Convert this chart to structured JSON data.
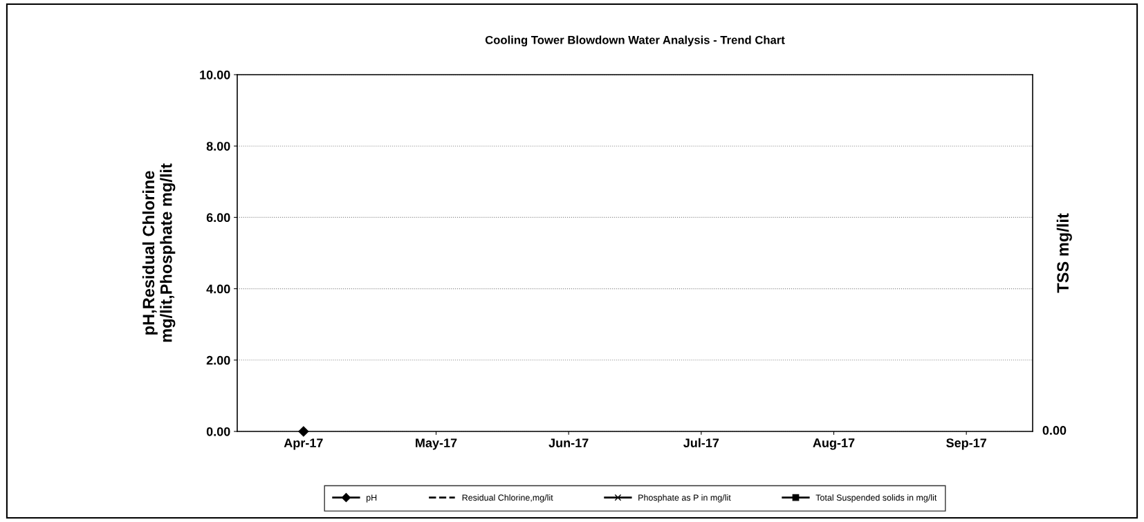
{
  "chart_data": {
    "type": "line",
    "title": "Cooling Tower Blowdown Water Analysis - Trend Chart",
    "ylabel": "pH,Residual Chlorine\nmg/lit,Phosphate mg/lit",
    "y2label": "TSS mg/lit",
    "categories": [
      "Apr-17",
      "May-17",
      "Jun-17",
      "Jul-17",
      "Aug-17",
      "Sep-17"
    ],
    "series": [
      {
        "name": "pH",
        "color": "#000000",
        "values": [
          0,
          null,
          null,
          null,
          null,
          null
        ],
        "marker": "diamond",
        "line_style": "solid"
      },
      {
        "name": "Residual Chlorine,mg/lit",
        "color": "#000000",
        "values": [
          null,
          null,
          null,
          null,
          null,
          null
        ],
        "marker": "none",
        "line_style": "dashed"
      },
      {
        "name": "Phosphate as P in mg/lit",
        "color": "#000000",
        "values": [
          null,
          null,
          null,
          null,
          null,
          null
        ],
        "marker": "cross",
        "line_style": "solid"
      },
      {
        "name": "Total Suspended solids in mg/lit",
        "color": "#000000",
        "values": [
          null,
          null,
          null,
          null,
          null,
          null
        ],
        "marker": "square",
        "line_style": "solid"
      }
    ],
    "ylim": [
      0,
      10
    ],
    "yticks": [
      {
        "value": 0,
        "label": "0.00"
      },
      {
        "value": 2,
        "label": "2.00"
      },
      {
        "value": 4,
        "label": "4.00"
      },
      {
        "value": 6,
        "label": "6.00"
      },
      {
        "value": 8,
        "label": "8.00"
      },
      {
        "value": 10,
        "label": "10.00"
      }
    ],
    "annotations": [
      "0.00"
    ],
    "grid": "y",
    "legend": "bottom"
  }
}
